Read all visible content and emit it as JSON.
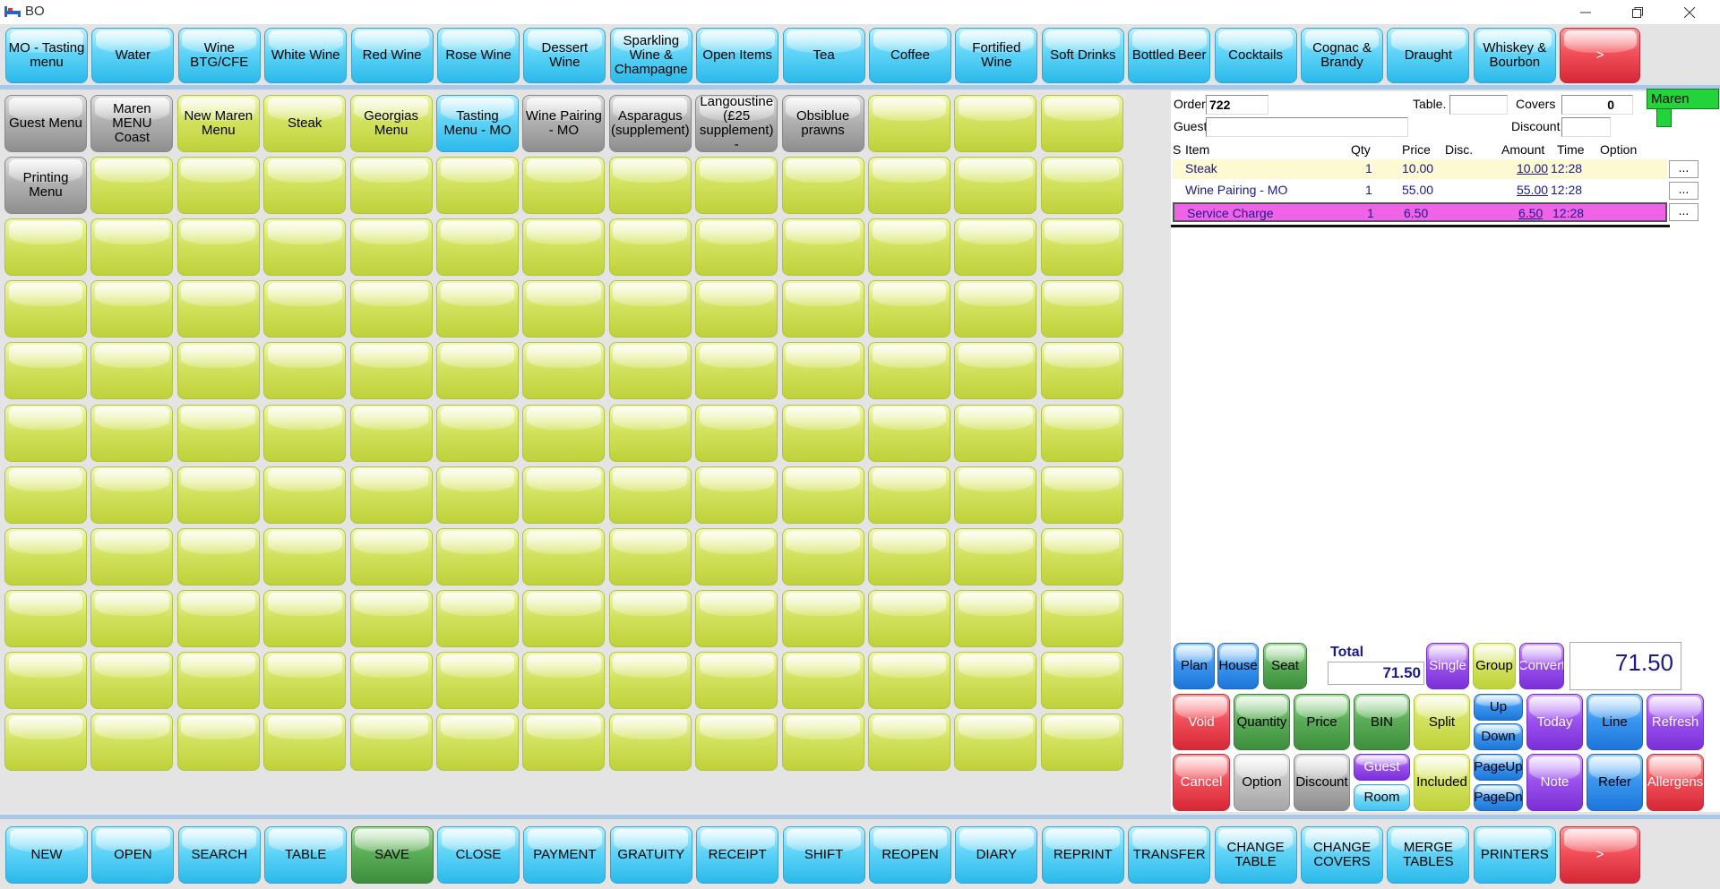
{
  "window": {
    "title": "BO"
  },
  "categories": [
    {
      "label": "MO - Tasting menu",
      "style": "blue"
    },
    {
      "label": "Water",
      "style": "blue"
    },
    {
      "label": "Wine BTG/CFE",
      "style": "blue"
    },
    {
      "label": "White Wine",
      "style": "blue"
    },
    {
      "label": "Red Wine",
      "style": "blue"
    },
    {
      "label": "Rose Wine",
      "style": "blue"
    },
    {
      "label": "Dessert Wine",
      "style": "blue"
    },
    {
      "label": "Sparkling Wine & Champagne",
      "style": "blue"
    },
    {
      "label": "Open Items",
      "style": "blue"
    },
    {
      "label": "Tea",
      "style": "blue"
    },
    {
      "label": "Coffee",
      "style": "blue"
    },
    {
      "label": "Fortified Wine",
      "style": "blue"
    },
    {
      "label": "Soft Drinks",
      "style": "blue"
    },
    {
      "label": "Bottled Beer",
      "style": "blue"
    },
    {
      "label": "Cocktails",
      "style": "blue"
    },
    {
      "label": "Cognac & Brandy",
      "style": "blue"
    },
    {
      "label": "Draught",
      "style": "blue"
    },
    {
      "label": "Whiskey & Bourbon",
      "style": "blue"
    },
    {
      "label": ">",
      "style": "red"
    }
  ],
  "items_row1": [
    {
      "label": "Guest Menu",
      "style": "grey"
    },
    {
      "label": "Maren MENU Coast",
      "style": "grey"
    },
    {
      "label": "New Maren Menu",
      "style": "lime"
    },
    {
      "label": "Steak",
      "style": "lime"
    },
    {
      "label": "Georgias Menu",
      "style": "lime"
    },
    {
      "label": "Tasting Menu - MO",
      "style": "blue"
    },
    {
      "label": "Wine Pairing - MO",
      "style": "grey"
    },
    {
      "label": "Asparagus (supplement)",
      "style": "grey"
    },
    {
      "label": "Langoustine (£25 supplement) -",
      "style": "grey"
    },
    {
      "label": "Obsiblue prawns",
      "style": "grey"
    },
    {
      "label": "",
      "style": "lime"
    },
    {
      "label": "",
      "style": "lime"
    },
    {
      "label": "",
      "style": "lime"
    }
  ],
  "items_row2_first": {
    "label": "Printing Menu",
    "style": "grey"
  },
  "order": {
    "order_label": "Order",
    "order_no": "722",
    "table_label": "Table.",
    "table_value": "",
    "covers_label": "Covers",
    "covers_value": "0",
    "guest_label": "Guest",
    "guest_value": "",
    "discount_label": "Discount",
    "discount_value": "",
    "user": "Maren",
    "columns": {
      "s": "S",
      "item": "Item",
      "qty": "Qty",
      "price": "Price",
      "disc": "Disc.",
      "amount": "Amount",
      "time": "Time",
      "option": "Option"
    },
    "lines": [
      {
        "item": "Steak",
        "qty": "1",
        "price": "10.00",
        "disc": "",
        "amount": "10.00",
        "time": "12:28",
        "more": "..."
      },
      {
        "item": "Wine Pairing - MO",
        "qty": "1",
        "price": "55.00",
        "disc": "",
        "amount": "55.00",
        "time": "12:28",
        "more": "..."
      },
      {
        "item": "Service Charge",
        "qty": "1",
        "price": "6.50",
        "disc": "",
        "amount": "6.50",
        "time": "12:28",
        "more": "..."
      }
    ],
    "total_label": "Total",
    "total_value": "71.50",
    "big_total": "71.50"
  },
  "controls": {
    "plan": "Plan",
    "house": "House",
    "seat": "Seat",
    "single": "Single",
    "group": "Group",
    "convert": "Convert",
    "void": "Void",
    "quantity": "Quantity",
    "price": "Price",
    "bin": "BIN",
    "split": "Split",
    "up": "Up",
    "down": "Down",
    "today": "Today",
    "line": "Line",
    "refresh": "Refresh",
    "cancel": "Cancel",
    "option": "Option",
    "discount": "Discount",
    "guest": "Guest",
    "room": "Room",
    "included": "Included",
    "pageup": "PageUp",
    "pagedn": "PageDn",
    "note": "Note",
    "refer": "Refer",
    "allergens": "Allergens"
  },
  "bottom_bar": [
    {
      "label": "NEW",
      "style": "blue"
    },
    {
      "label": "OPEN",
      "style": "blue"
    },
    {
      "label": "SEARCH",
      "style": "blue"
    },
    {
      "label": "TABLE",
      "style": "blue"
    },
    {
      "label": "SAVE",
      "style": "green"
    },
    {
      "label": "CLOSE",
      "style": "blue"
    },
    {
      "label": "PAYMENT",
      "style": "blue"
    },
    {
      "label": "GRATUITY",
      "style": "blue"
    },
    {
      "label": "RECEIPT",
      "style": "blue"
    },
    {
      "label": "SHIFT",
      "style": "blue"
    },
    {
      "label": "REOPEN",
      "style": "blue"
    },
    {
      "label": "DIARY",
      "style": "blue"
    },
    {
      "label": "REPRINT",
      "style": "blue"
    },
    {
      "label": "TRANSFER",
      "style": "blue"
    },
    {
      "label": "CHANGE TABLE",
      "style": "blue"
    },
    {
      "label": "CHANGE COVERS",
      "style": "blue"
    },
    {
      "label": "MERGE TABLES",
      "style": "blue"
    },
    {
      "label": "PRINTERS",
      "style": "blue"
    },
    {
      "label": ">",
      "style": "red"
    }
  ],
  "icons": {
    "app": "bed-icon",
    "minimize": "minimize-icon",
    "restore": "restore-icon",
    "close": "close-icon"
  }
}
